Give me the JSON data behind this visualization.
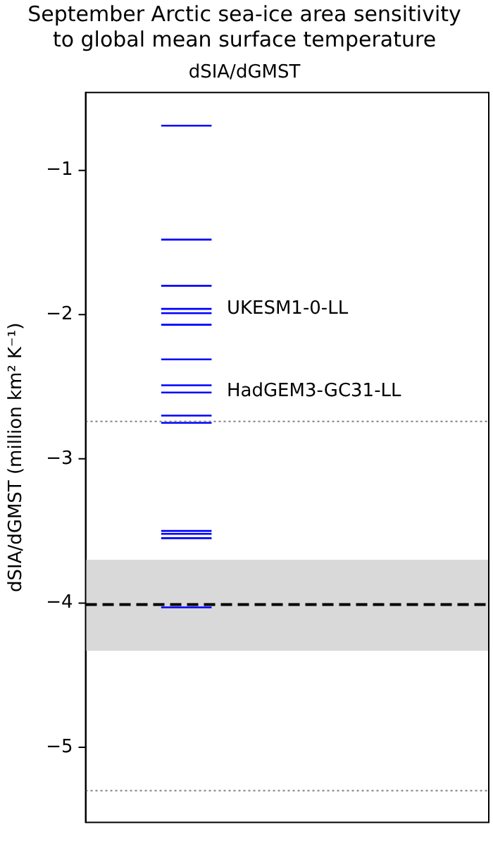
{
  "chart_data": {
    "type": "line",
    "title": [
      "September Arctic sea-ice area sensitivity",
      "to global mean surface temperature"
    ],
    "subtitle": "dSIA/dGMST",
    "ylabel": "dSIA/dGMST (million km² K⁻¹)",
    "categories": [
      null,
      null,
      null,
      null,
      null,
      null,
      null,
      null
    ],
    "marker": "none",
    "series": [
      {
        "color": "#0000ff",
        "values": [
          null,
          -0.69,
          -0.69,
          null,
          null,
          null,
          null,
          null
        ]
      },
      {
        "color": "#0000ff",
        "values": [
          null,
          -1.48,
          -1.48,
          null,
          null,
          null,
          null,
          null
        ]
      },
      {
        "color": "#0000ff",
        "values": [
          null,
          -1.8,
          -1.8,
          null,
          null,
          null,
          null,
          null
        ]
      },
      {
        "color": "#0000ff",
        "values": [
          null,
          -1.96,
          -1.96,
          null,
          null,
          null,
          null,
          null
        ]
      },
      {
        "color": "#0000ff",
        "values": [
          null,
          -1.99,
          -1.99,
          null,
          null,
          null,
          null,
          null
        ]
      },
      {
        "color": "#0000ff",
        "values": [
          null,
          -2.07,
          -2.07,
          null,
          null,
          null,
          null,
          null
        ]
      },
      {
        "color": "#0000ff",
        "values": [
          null,
          -2.31,
          -2.31,
          null,
          null,
          null,
          null,
          null
        ]
      },
      {
        "color": "#0000ff",
        "values": [
          null,
          -2.49,
          -2.49,
          null,
          null,
          null,
          null,
          null
        ]
      },
      {
        "color": "#0000ff",
        "values": [
          null,
          -2.54,
          -2.54,
          null,
          null,
          null,
          null,
          null
        ]
      },
      {
        "color": "#0000ff",
        "values": [
          null,
          -2.7,
          -2.7,
          null,
          null,
          null,
          null,
          null
        ]
      },
      {
        "color": "#0000ff",
        "values": [
          null,
          -2.75,
          -2.75,
          null,
          null,
          null,
          null,
          null
        ]
      },
      {
        "color": "#0000ff",
        "values": [
          null,
          -3.5,
          -3.5,
          null,
          null,
          null,
          null,
          null
        ]
      },
      {
        "color": "#0000ff",
        "values": [
          null,
          -3.52,
          -3.52,
          null,
          null,
          null,
          null,
          null
        ]
      },
      {
        "color": "#0000ff",
        "values": [
          null,
          -3.55,
          -3.55,
          null,
          null,
          null,
          null,
          null
        ]
      },
      {
        "color": "#0000ff",
        "values": [
          null,
          -4.03,
          -4.03,
          null,
          null,
          null,
          null,
          null
        ]
      }
    ],
    "ylim": [
      -5.52,
      -0.46
    ],
    "yticks": [
      {
        "value": -1,
        "label": "−1"
      },
      {
        "value": -2,
        "label": "−2"
      },
      {
        "value": -3,
        "label": "−3"
      },
      {
        "value": -4,
        "label": "−4"
      },
      {
        "value": -5,
        "label": "−5"
      }
    ],
    "ref_lines": [
      {
        "axis": "y",
        "value": -2.74,
        "color": "#808080",
        "line_style": "dotted"
      },
      {
        "axis": "y",
        "value": -4.01,
        "color": "#000000",
        "line_style": "dashed"
      },
      {
        "axis": "y",
        "value": -5.3,
        "color": "#808080",
        "line_style": "dotted"
      }
    ],
    "bands": [
      {
        "axis": "y",
        "from": -3.7,
        "to": -4.33,
        "color": "#d9d9d9"
      }
    ],
    "annotations": [
      "UKESM1-0-LL",
      "HadGEM3-GC31-LL"
    ],
    "grid": false,
    "legend": false,
    "tick_labels": "y"
  }
}
